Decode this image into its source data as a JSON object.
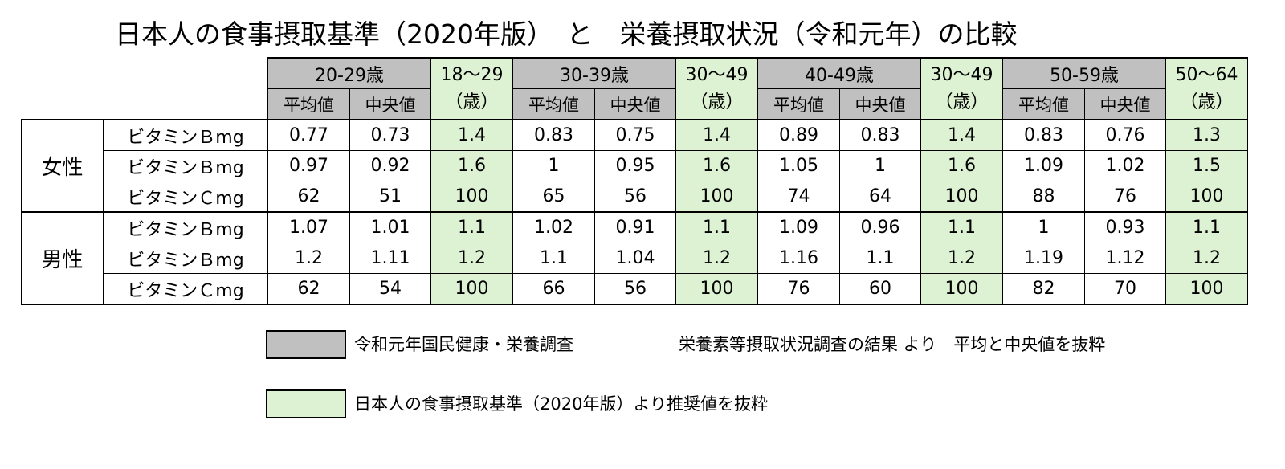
{
  "title": "日本人の食事摂取基準（2020年版）　と　栄養摂取状況（令和元年）の比較",
  "colors": {
    "survey_header": "#c0c0c0",
    "recommended": "#ddf2d3"
  },
  "header": {
    "groups": [
      {
        "age": "20-29歳",
        "sub1": "平均値",
        "sub2": "中央値",
        "rec_line1": "18～29",
        "rec_line2": "（歳）"
      },
      {
        "age": "30-39歳",
        "sub1": "平均値",
        "sub2": "中央値",
        "rec_line1": "30～49",
        "rec_line2": "（歳）"
      },
      {
        "age": "40-49歳",
        "sub1": "平均値",
        "sub2": "中央値",
        "rec_line1": "30～49",
        "rec_line2": "（歳）"
      },
      {
        "age": "50-59歳",
        "sub1": "平均値",
        "sub2": "中央値",
        "rec_line1": "50～64",
        "rec_line2": "（歳）"
      }
    ]
  },
  "sections": [
    {
      "sex": "女性",
      "rows": [
        {
          "label": "ビタミンＢmg",
          "values": [
            "0.77",
            "0.73",
            "1.4",
            "0.83",
            "0.75",
            "1.4",
            "0.89",
            "0.83",
            "1.4",
            "0.83",
            "0.76",
            "1.3"
          ]
        },
        {
          "label": "ビタミンＢmg",
          "values": [
            "0.97",
            "0.92",
            "1.6",
            "1",
            "0.95",
            "1.6",
            "1.05",
            "1",
            "1.6",
            "1.09",
            "1.02",
            "1.5"
          ]
        },
        {
          "label": "ビタミンＣmg",
          "values": [
            "62",
            "51",
            "100",
            "65",
            "56",
            "100",
            "74",
            "64",
            "100",
            "88",
            "76",
            "100"
          ]
        }
      ]
    },
    {
      "sex": "男性",
      "rows": [
        {
          "label": "ビタミンＢmg",
          "values": [
            "1.07",
            "1.01",
            "1.1",
            "1.02",
            "0.91",
            "1.1",
            "1.09",
            "0.96",
            "1.1",
            "1",
            "0.93",
            "1.1"
          ]
        },
        {
          "label": "ビタミンＢmg",
          "values": [
            "1.2",
            "1.11",
            "1.2",
            "1.1",
            "1.04",
            "1.2",
            "1.16",
            "1.1",
            "1.2",
            "1.19",
            "1.12",
            "1.2"
          ]
        },
        {
          "label": "ビタミンＣmg",
          "values": [
            "62",
            "54",
            "100",
            "66",
            "56",
            "100",
            "76",
            "60",
            "100",
            "82",
            "70",
            "100"
          ]
        }
      ]
    }
  ],
  "legend": {
    "survey_label": "令和元年国民健康・栄養調査",
    "survey_note": "栄養素等摂取状況調査の結果 より　平均と中央値を抜粋",
    "recommended_label": "日本人の食事摂取基準（2020年版）より推奨値を抜粋"
  }
}
